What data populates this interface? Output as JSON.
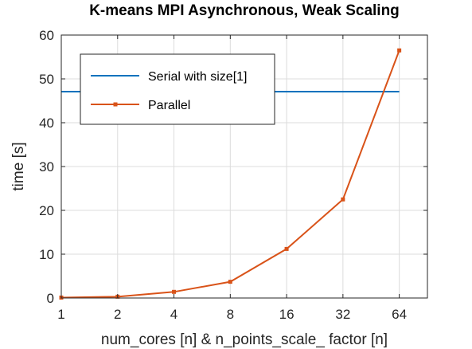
{
  "chart_data": {
    "type": "line",
    "title": "K-means MPI Asynchronous, Weak Scaling",
    "xlabel": "num_cores [n] & n_points_scale_ factor [n]",
    "ylabel": "time [s]",
    "x_scale": "log2",
    "x_ticks": [
      "1",
      "2",
      "4",
      "8",
      "16",
      "32",
      "64"
    ],
    "y_ticks": [
      "0",
      "10",
      "20",
      "30",
      "40",
      "50",
      "60"
    ],
    "xlim": [
      1,
      90.5
    ],
    "ylim": [
      0,
      60
    ],
    "grid": true,
    "legend_position": "top-left",
    "series": [
      {
        "name": "Serial with size[1]",
        "color": "#0072bd",
        "marker": "none",
        "x": [
          1,
          64
        ],
        "y": [
          47.1,
          47.1
        ]
      },
      {
        "name": "Parallel",
        "color": "#d95319",
        "marker": "square",
        "x": [
          1,
          2,
          4,
          8,
          16,
          32,
          64
        ],
        "y": [
          0.1,
          0.3,
          1.4,
          3.7,
          11.2,
          22.5,
          56.5
        ]
      }
    ]
  }
}
